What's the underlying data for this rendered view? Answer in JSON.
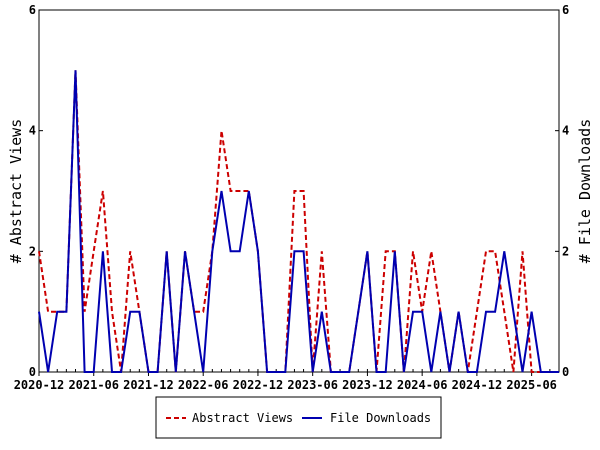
{
  "chart_data": {
    "type": "line",
    "ylabel_left": "# Abstract Views",
    "ylabel_right": "# File Downloads",
    "ylim": [
      0,
      6
    ],
    "yticks": [
      0,
      2,
      4,
      6
    ],
    "xlim": [
      "2020-12",
      "2025-09"
    ],
    "xticks": [
      "2020-12",
      "2021-06",
      "2021-12",
      "2022-06",
      "2022-12",
      "2023-06",
      "2023-12",
      "2024-06",
      "2024-12",
      "2025-06"
    ],
    "x": [
      "2020-12",
      "2021-01",
      "2021-02",
      "2021-03",
      "2021-04",
      "2021-05",
      "2021-06",
      "2021-07",
      "2021-08",
      "2021-09",
      "2021-10",
      "2021-11",
      "2021-12",
      "2022-01",
      "2022-02",
      "2022-03",
      "2022-04",
      "2022-05",
      "2022-06",
      "2022-07",
      "2022-08",
      "2022-09",
      "2022-10",
      "2022-11",
      "2022-12",
      "2023-01",
      "2023-02",
      "2023-03",
      "2023-04",
      "2023-05",
      "2023-06",
      "2023-07",
      "2023-08",
      "2023-09",
      "2023-10",
      "2023-11",
      "2023-12",
      "2024-01",
      "2024-02",
      "2024-03",
      "2024-04",
      "2024-05",
      "2024-06",
      "2024-07",
      "2024-08",
      "2024-09",
      "2024-10",
      "2024-11",
      "2024-12",
      "2025-01",
      "2025-02",
      "2025-03",
      "2025-04",
      "2025-05",
      "2025-06",
      "2025-07",
      "2025-08",
      "2025-09"
    ],
    "series": [
      {
        "name": "Abstract Views",
        "color": "#cc0000",
        "dash": true,
        "values": [
          2,
          1,
          1,
          1,
          5,
          1,
          2,
          3,
          1,
          0,
          2,
          1,
          0,
          0,
          2,
          0,
          2,
          1,
          1,
          2,
          4,
          3,
          3,
          3,
          2,
          0,
          0,
          0,
          3,
          3,
          0,
          2,
          0,
          0,
          0,
          1,
          2,
          0,
          2,
          2,
          0,
          2,
          1,
          2,
          1,
          0,
          1,
          0,
          1,
          2,
          2,
          1,
          0,
          2,
          0,
          0,
          0,
          0
        ]
      },
      {
        "name": "File Downloads",
        "color": "#0000b0",
        "dash": false,
        "values": [
          1,
          0,
          1,
          1,
          5,
          0,
          0,
          2,
          0,
          0,
          1,
          1,
          0,
          0,
          2,
          0,
          2,
          1,
          0,
          2,
          3,
          2,
          2,
          3,
          2,
          0,
          0,
          0,
          2,
          2,
          0,
          1,
          0,
          0,
          0,
          1,
          2,
          0,
          0,
          2,
          0,
          1,
          1,
          0,
          1,
          0,
          1,
          0,
          0,
          1,
          1,
          2,
          1,
          0,
          1,
          0,
          0,
          0
        ]
      }
    ],
    "legend_position": "bottom",
    "grid": false
  }
}
